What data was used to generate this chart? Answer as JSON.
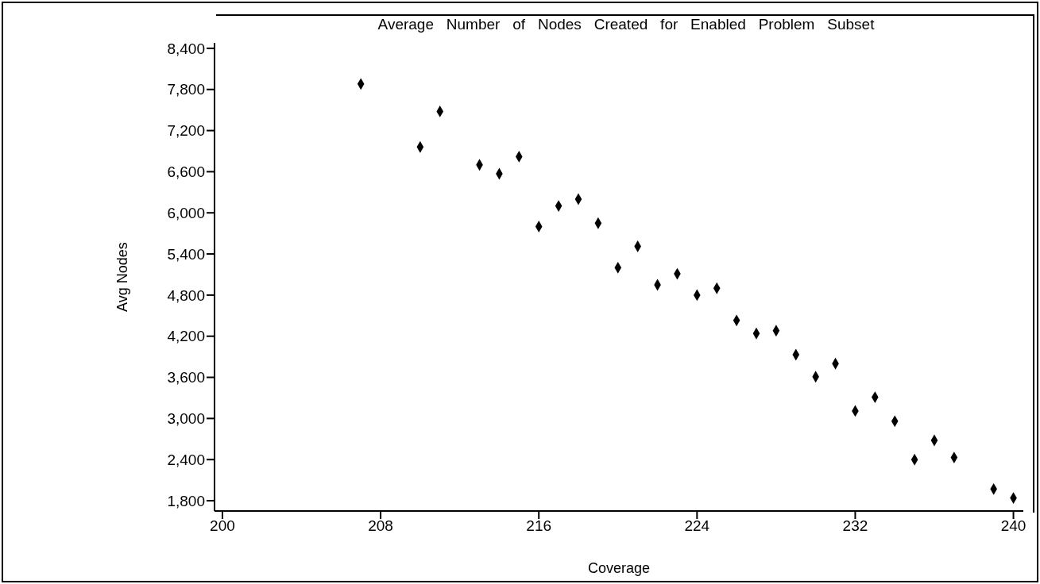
{
  "chart_data": {
    "type": "scatter",
    "title": "Average   Number   of   Nodes   Created   for   Enabled   Problem   Subset",
    "xlabel": "Coverage",
    "ylabel": "Avg Nodes",
    "x": [
      207,
      210,
      211,
      213,
      214,
      215,
      216,
      217,
      218,
      219,
      220,
      221,
      222,
      223,
      224,
      225,
      226,
      227,
      228,
      229,
      230,
      231,
      232,
      233,
      234,
      235,
      236,
      237,
      239,
      240
    ],
    "series": [
      {
        "color": "#000000",
        "values": [
          7880,
          6960,
          7480,
          6700,
          6570,
          6820,
          5800,
          6100,
          6200,
          5850,
          5200,
          5510,
          4950,
          5110,
          4800,
          4900,
          4430,
          4240,
          4280,
          3930,
          3610,
          3800,
          3110,
          3310,
          2960,
          2400,
          2680,
          2430,
          1970,
          1840
        ]
      }
    ],
    "xlim": [
      199.6,
      240.5
    ],
    "xticks": [
      200,
      208,
      216,
      224,
      232,
      240
    ],
    "ylim": [
      1650,
      8480
    ],
    "yticks": [
      {
        "value": 1800,
        "label": "1,800"
      },
      {
        "value": 2400,
        "label": "2,400"
      },
      {
        "value": 3000,
        "label": "3,000"
      },
      {
        "value": 3600,
        "label": "3,600"
      },
      {
        "value": 4200,
        "label": "4,200"
      },
      {
        "value": 4800,
        "label": "4,800"
      },
      {
        "value": 5400,
        "label": "5,400"
      },
      {
        "value": 6000,
        "label": "6,000"
      },
      {
        "value": 6600,
        "label": "6,600"
      },
      {
        "value": 7200,
        "label": "7,200"
      },
      {
        "value": 7800,
        "label": "7,800"
      },
      {
        "value": 8400,
        "label": "8,400"
      }
    ],
    "grid": false,
    "legend": false,
    "marker": "diamond"
  }
}
